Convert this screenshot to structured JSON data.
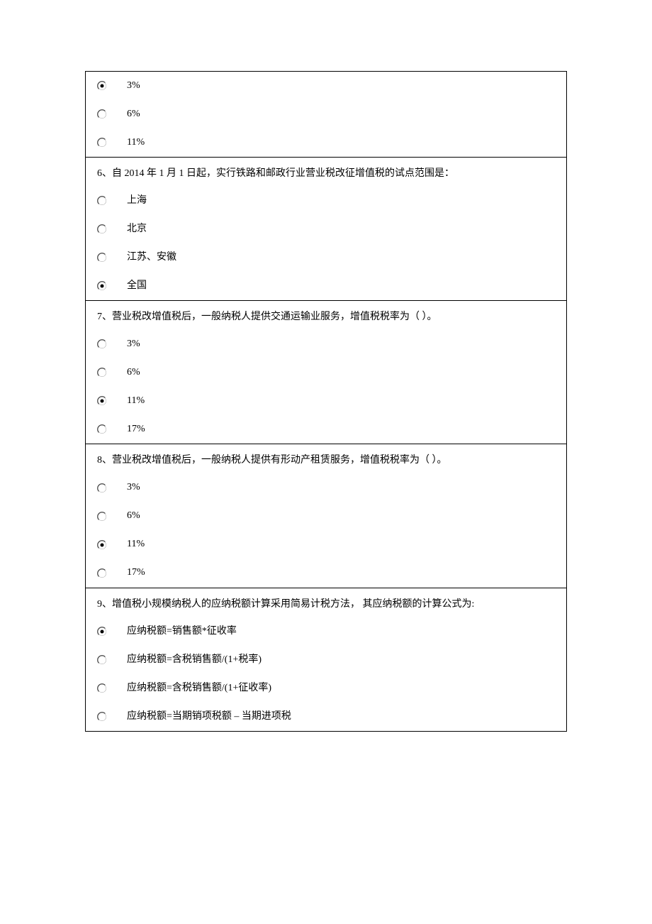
{
  "colors": {
    "border": "#000000",
    "text": "#000000",
    "background": "#ffffff",
    "radio_outer": "#404040",
    "radio_dot": "#000000",
    "radio_highlight": "#ffffff",
    "radio_shadow": "#808080"
  },
  "font": {
    "family_serif": "SimSun",
    "size_pt": 10
  },
  "q5_tail": {
    "options": [
      {
        "label": "3%",
        "selected": true
      },
      {
        "label": "6%",
        "selected": false
      },
      {
        "label": "11%",
        "selected": false
      }
    ]
  },
  "q6": {
    "stem": "6、自 2014 年 1 月 1 日起，实行铁路和邮政行业营业税改征增值税的试点范围是：",
    "options": [
      {
        "label": "上海",
        "selected": false
      },
      {
        "label": "北京",
        "selected": false
      },
      {
        "label": "江苏、安徽",
        "selected": false
      },
      {
        "label": "全国",
        "selected": true
      }
    ]
  },
  "q7": {
    "stem": "7、营业税改增值税后，一般纳税人提供交通运输业服务，增值税税率为（ ）。",
    "options": [
      {
        "label": "3%",
        "selected": false
      },
      {
        "label": "6%",
        "selected": false
      },
      {
        "label": "11%",
        "selected": true
      },
      {
        "label": "17%",
        "selected": false
      }
    ]
  },
  "q8": {
    "stem": "8、营业税改增值税后，一般纳税人提供有形动产租赁服务，增值税税率为（ ）。",
    "options": [
      {
        "label": "3%",
        "selected": false
      },
      {
        "label": "6%",
        "selected": false
      },
      {
        "label": "11%",
        "selected": true
      },
      {
        "label": "17%",
        "selected": false
      }
    ]
  },
  "q9": {
    "stem": "9、增值税小规模纳税人的应纳税额计算采用简易计税方法， 其应纳税额的计算公式为:",
    "options": [
      {
        "label": "应纳税额=销售额*征收率",
        "selected": true
      },
      {
        "label": "应纳税额=含税销售额/(1+税率)",
        "selected": false
      },
      {
        "label": "应纳税额=含税销售额/(1+征收率)",
        "selected": false
      },
      {
        "label": "应纳税额=当期销项税额  –  当期进项税",
        "selected": false
      }
    ]
  }
}
